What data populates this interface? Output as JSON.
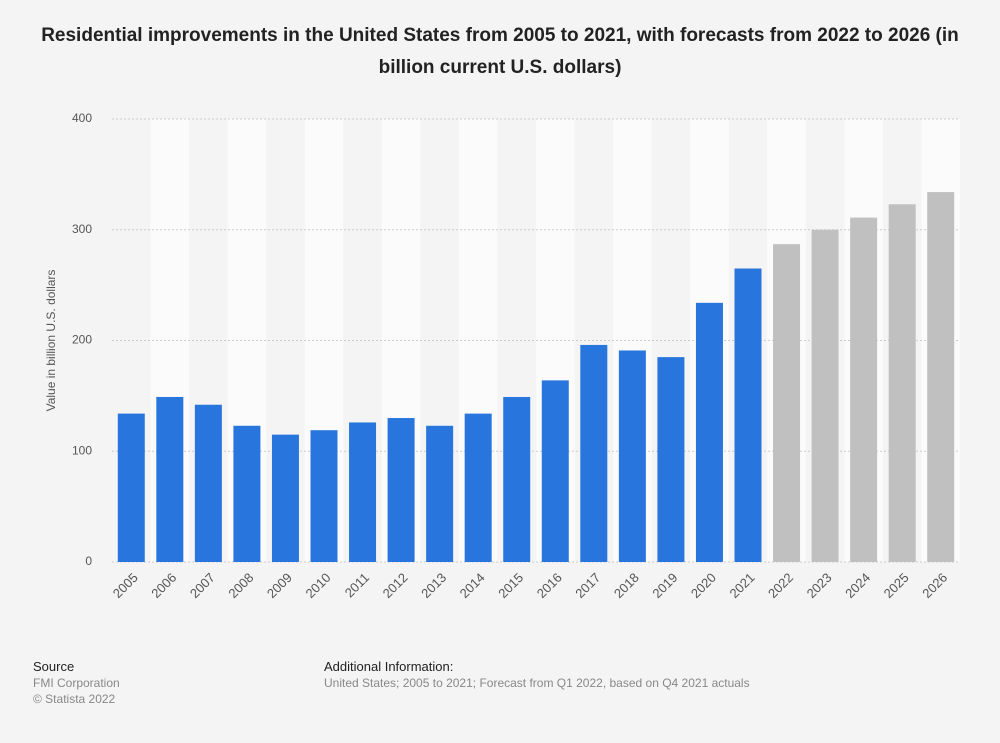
{
  "chart_data": {
    "type": "bar",
    "title": "Residential improvements in the United States from 2005 to 2021, with forecasts from 2022 to 2026 (in billion current U.S. dollars)",
    "y_label": "Value in billion U.S. dollars",
    "categories": [
      "2005",
      "2006",
      "2007",
      "2008",
      "2009",
      "2010",
      "2011",
      "2012",
      "2013",
      "2014",
      "2015",
      "2016",
      "2017",
      "2018",
      "2019",
      "2020",
      "2021",
      "2022",
      "2023",
      "2024",
      "2025",
      "2026"
    ],
    "values": [
      134,
      149,
      142,
      123,
      115,
      119,
      126,
      130,
      123,
      134,
      149,
      164,
      196,
      191,
      185,
      234,
      265,
      287,
      300,
      311,
      323,
      334
    ],
    "colors": [
      "#2876dd",
      "#2876dd",
      "#2876dd",
      "#2876dd",
      "#2876dd",
      "#2876dd",
      "#2876dd",
      "#2876dd",
      "#2876dd",
      "#2876dd",
      "#2876dd",
      "#2876dd",
      "#2876dd",
      "#2876dd",
      "#2876dd",
      "#2876dd",
      "#2876dd",
      "#c0c0c0",
      "#c0c0c0",
      "#c0c0c0",
      "#c0c0c0",
      "#c0c0c0"
    ],
    "ylim": [
      0,
      400
    ],
    "yticks": [
      0,
      100,
      200,
      300,
      400
    ],
    "grid": true
  },
  "footer": {
    "source_heading": "Source",
    "source_lines": [
      "FMI Corporation",
      "© Statista 2022"
    ],
    "info_heading": "Additional Information:",
    "info_text": "United States; 2005 to 2021; Forecast from Q1 2022, based on Q4 2021 actuals"
  }
}
